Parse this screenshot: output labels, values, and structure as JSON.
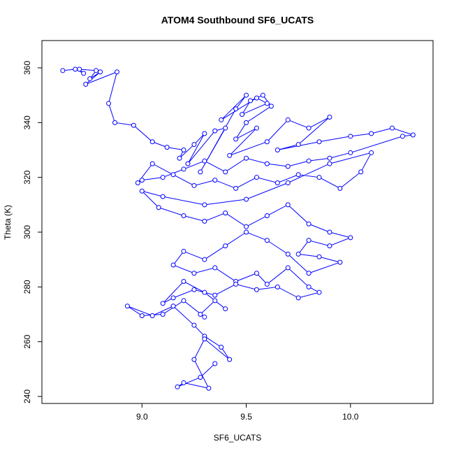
{
  "chart_data": {
    "type": "line",
    "title": "ATOM4 Southbound SF6_UCATS",
    "x_label": "SF6_UCATS",
    "y_label": "Theta (K)",
    "x": [
      8.62,
      8.68,
      8.72,
      8.7,
      8.78,
      8.75,
      8.8,
      8.73,
      8.88,
      8.84,
      8.87,
      8.96,
      9.05,
      9.12,
      9.2,
      9.18,
      9.25,
      9.3,
      9.22,
      9.35,
      9.4,
      9.28,
      9.45,
      9.5,
      9.38,
      9.55,
      9.6,
      9.48,
      9.52,
      9.58,
      9.62,
      9.5,
      9.45,
      9.55,
      9.42,
      9.6,
      9.7,
      9.8,
      9.9,
      9.75,
      9.65,
      9.85,
      10.0,
      10.1,
      10.2,
      10.3,
      10.25,
      10.0,
      9.9,
      9.8,
      9.7,
      9.6,
      9.5,
      9.4,
      9.3,
      9.2,
      9.1,
      9.0,
      8.98,
      9.05,
      9.15,
      9.25,
      9.35,
      9.45,
      9.55,
      9.65,
      9.75,
      9.85,
      9.95,
      10.05,
      10.1,
      9.9,
      9.7,
      9.5,
      9.3,
      9.1,
      9.0,
      9.08,
      9.2,
      9.3,
      9.4,
      9.5,
      9.6,
      9.7,
      9.8,
      9.9,
      10.0,
      9.9,
      9.8,
      9.75,
      9.85,
      9.95,
      9.8,
      9.7,
      9.6,
      9.5,
      9.4,
      9.3,
      9.2,
      9.15,
      9.25,
      9.35,
      9.45,
      9.55,
      9.6,
      9.7,
      9.8,
      9.85,
      9.75,
      9.65,
      9.55,
      9.45,
      9.35,
      9.25,
      9.15,
      9.1,
      9.2,
      9.3,
      9.4,
      9.35,
      9.28,
      9.3,
      9.2,
      9.1,
      9.0,
      8.93,
      9.05,
      9.15,
      9.25,
      9.3,
      9.38,
      9.42,
      9.3,
      9.25,
      9.32,
      9.2,
      9.17,
      9.28,
      9.35
    ],
    "series": [
      {
        "color": "#0000ff",
        "values": [
          359,
          359.5,
          358,
          359.5,
          359,
          356,
          358.5,
          354,
          358.5,
          347,
          340,
          339,
          333,
          331,
          330,
          327,
          332,
          336,
          325,
          337,
          338,
          322,
          345,
          350,
          341,
          349,
          347,
          343,
          348,
          350,
          346,
          340,
          334,
          338,
          328,
          333,
          341,
          338,
          342,
          332,
          330,
          333,
          335,
          336,
          338,
          335.5,
          335,
          329,
          327,
          326,
          324,
          325,
          327,
          322,
          326,
          323,
          320,
          319,
          318,
          325,
          321,
          317,
          319,
          316,
          320,
          318,
          321,
          320,
          316,
          322,
          329,
          325,
          318,
          312,
          310,
          313,
          315,
          309,
          306,
          304,
          307,
          302,
          306,
          310,
          303,
          300,
          298,
          295,
          297,
          292,
          291,
          289,
          285,
          292,
          297,
          300,
          295,
          290,
          293,
          288,
          285,
          287,
          282,
          285,
          281,
          287,
          280,
          278,
          276,
          280,
          279,
          281,
          277,
          279,
          276,
          274,
          282,
          278,
          272,
          275,
          270,
          269,
          275,
          270,
          269.5,
          273,
          269.5,
          273,
          266,
          262,
          258,
          253.5,
          261,
          253.5,
          243,
          245,
          243.5,
          247,
          252
        ]
      }
    ],
    "xlim": [
      8.52,
      10.396
    ],
    "xticks": [
      {
        "value": 9,
        "label": "9.0"
      },
      9.5,
      {
        "value": 10,
        "label": "10.0"
      }
    ],
    "ylim": [
      237.45,
      369.96
    ],
    "yticks": [
      240,
      260,
      280,
      300,
      320,
      340,
      360
    ]
  }
}
